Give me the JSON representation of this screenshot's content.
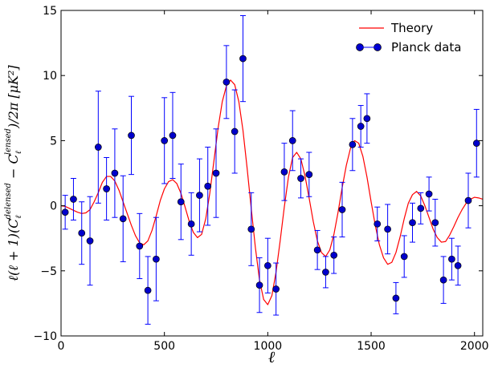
{
  "chart_data": {
    "type": "scatter",
    "xlabel": "ℓ",
    "ylabel": "ℓ(ℓ+1)(Cℓdelensed − Cℓlensed)/2π [μK²]",
    "xlim": [
      0,
      2040
    ],
    "ylim": [
      -10,
      15
    ],
    "xticks": [
      "0",
      "500",
      "1000",
      "1500",
      "2000"
    ],
    "yticks": [
      "−10",
      "−5",
      "0",
      "5",
      "10",
      "15"
    ],
    "legend": {
      "position": "top-right",
      "theory_label": "Theory",
      "data_label": "Planck data"
    },
    "colors": {
      "theory": "#ff0000",
      "data": "#0000cc",
      "errorbar": "#0000ff"
    },
    "series": [
      {
        "name": "Theory",
        "kind": "line",
        "points": [
          [
            0,
            0.0
          ],
          [
            20,
            -0.05
          ],
          [
            40,
            -0.2
          ],
          [
            60,
            -0.35
          ],
          [
            80,
            -0.5
          ],
          [
            100,
            -0.6
          ],
          [
            120,
            -0.55
          ],
          [
            140,
            -0.3
          ],
          [
            160,
            0.3
          ],
          [
            180,
            1.0
          ],
          [
            200,
            1.8
          ],
          [
            220,
            2.25
          ],
          [
            240,
            2.25
          ],
          [
            260,
            1.9
          ],
          [
            280,
            1.2
          ],
          [
            300,
            0.3
          ],
          [
            320,
            -0.6
          ],
          [
            340,
            -1.5
          ],
          [
            360,
            -2.3
          ],
          [
            380,
            -2.85
          ],
          [
            400,
            -3.0
          ],
          [
            420,
            -2.7
          ],
          [
            440,
            -1.9
          ],
          [
            460,
            -0.8
          ],
          [
            480,
            0.4
          ],
          [
            500,
            1.3
          ],
          [
            520,
            1.85
          ],
          [
            540,
            2.0
          ],
          [
            560,
            1.7
          ],
          [
            580,
            0.95
          ],
          [
            600,
            -0.1
          ],
          [
            620,
            -1.2
          ],
          [
            640,
            -2.05
          ],
          [
            660,
            -2.45
          ],
          [
            680,
            -2.2
          ],
          [
            700,
            -1.0
          ],
          [
            720,
            1.0
          ],
          [
            740,
            3.5
          ],
          [
            760,
            6.0
          ],
          [
            780,
            8.0
          ],
          [
            800,
            9.2
          ],
          [
            820,
            9.65
          ],
          [
            840,
            9.3
          ],
          [
            860,
            8.0
          ],
          [
            880,
            5.8
          ],
          [
            900,
            2.9
          ],
          [
            920,
            -0.2
          ],
          [
            940,
            -3.2
          ],
          [
            960,
            -5.7
          ],
          [
            980,
            -7.2
          ],
          [
            1000,
            -7.6
          ],
          [
            1020,
            -6.9
          ],
          [
            1040,
            -5.1
          ],
          [
            1060,
            -2.7
          ],
          [
            1080,
            -0.1
          ],
          [
            1100,
            2.2
          ],
          [
            1120,
            3.7
          ],
          [
            1140,
            4.1
          ],
          [
            1160,
            3.6
          ],
          [
            1180,
            2.3
          ],
          [
            1200,
            0.6
          ],
          [
            1220,
            -1.2
          ],
          [
            1240,
            -2.7
          ],
          [
            1260,
            -3.6
          ],
          [
            1280,
            -3.9
          ],
          [
            1300,
            -3.4
          ],
          [
            1320,
            -2.2
          ],
          [
            1340,
            -0.5
          ],
          [
            1360,
            1.4
          ],
          [
            1380,
            3.1
          ],
          [
            1400,
            4.4
          ],
          [
            1420,
            5.0
          ],
          [
            1440,
            4.8
          ],
          [
            1460,
            3.8
          ],
          [
            1480,
            2.2
          ],
          [
            1500,
            0.3
          ],
          [
            1520,
            -1.5
          ],
          [
            1540,
            -3.0
          ],
          [
            1560,
            -4.0
          ],
          [
            1580,
            -4.5
          ],
          [
            1600,
            -4.35
          ],
          [
            1620,
            -3.6
          ],
          [
            1640,
            -2.4
          ],
          [
            1660,
            -1.0
          ],
          [
            1680,
            0.2
          ],
          [
            1700,
            0.85
          ],
          [
            1720,
            1.1
          ],
          [
            1740,
            0.75
          ],
          [
            1760,
            0.0
          ],
          [
            1780,
            -0.9
          ],
          [
            1800,
            -1.8
          ],
          [
            1820,
            -2.45
          ],
          [
            1840,
            -2.8
          ],
          [
            1860,
            -2.75
          ],
          [
            1880,
            -2.25
          ],
          [
            1900,
            -1.6
          ],
          [
            1920,
            -0.9
          ],
          [
            1940,
            -0.3
          ],
          [
            1960,
            0.2
          ],
          [
            1980,
            0.5
          ],
          [
            2000,
            0.65
          ],
          [
            2020,
            0.6
          ],
          [
            2040,
            0.5
          ]
        ]
      },
      {
        "name": "Planck data",
        "kind": "errorbar",
        "points": [
          [
            20,
            -0.5,
            1.3
          ],
          [
            60,
            0.5,
            1.6
          ],
          [
            100,
            -2.1,
            2.4
          ],
          [
            140,
            -2.7,
            3.4
          ],
          [
            180,
            4.5,
            4.3
          ],
          [
            220,
            1.3,
            2.4
          ],
          [
            260,
            2.5,
            3.4
          ],
          [
            300,
            -1.0,
            3.3
          ],
          [
            340,
            5.4,
            3.0
          ],
          [
            380,
            -3.1,
            2.5
          ],
          [
            420,
            -6.5,
            2.6
          ],
          [
            460,
            -4.1,
            3.2
          ],
          [
            500,
            5.0,
            3.3
          ],
          [
            540,
            5.4,
            3.3
          ],
          [
            580,
            0.3,
            2.9
          ],
          [
            630,
            -1.4,
            2.4
          ],
          [
            670,
            0.8,
            2.8
          ],
          [
            710,
            1.5,
            3.0
          ],
          [
            750,
            2.5,
            3.4
          ],
          [
            800,
            9.5,
            2.8
          ],
          [
            840,
            5.7,
            3.2
          ],
          [
            880,
            11.3,
            3.3
          ],
          [
            920,
            -1.8,
            2.8
          ],
          [
            960,
            -6.1,
            2.1
          ],
          [
            1000,
            -4.6,
            2.1
          ],
          [
            1040,
            -6.4,
            2.0
          ],
          [
            1080,
            2.6,
            2.2
          ],
          [
            1120,
            5.0,
            2.3
          ],
          [
            1160,
            2.1,
            1.5
          ],
          [
            1200,
            2.4,
            1.7
          ],
          [
            1240,
            -3.4,
            1.5
          ],
          [
            1280,
            -5.1,
            1.2
          ],
          [
            1320,
            -3.8,
            1.4
          ],
          [
            1360,
            -0.3,
            2.1
          ],
          [
            1410,
            4.7,
            2.0
          ],
          [
            1450,
            6.1,
            1.6
          ],
          [
            1480,
            6.7,
            1.9
          ],
          [
            1530,
            -1.4,
            1.3
          ],
          [
            1580,
            -1.8,
            1.9
          ],
          [
            1620,
            -7.1,
            1.2
          ],
          [
            1660,
            -3.9,
            1.6
          ],
          [
            1700,
            -1.3,
            1.5
          ],
          [
            1740,
            -0.2,
            1.2
          ],
          [
            1780,
            0.9,
            1.3
          ],
          [
            1810,
            -1.3,
            1.8
          ],
          [
            1850,
            -5.7,
            1.8
          ],
          [
            1890,
            -4.1,
            1.6
          ],
          [
            1920,
            -4.6,
            1.5
          ],
          [
            1970,
            0.4,
            2.1
          ],
          [
            2010,
            4.8,
            2.6
          ]
        ]
      }
    ]
  }
}
